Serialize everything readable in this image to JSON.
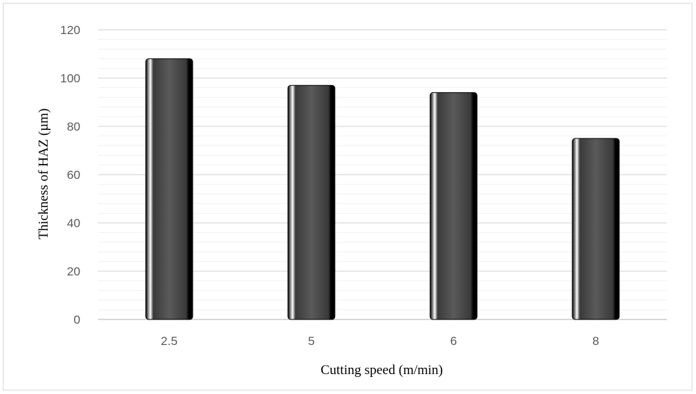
{
  "chart_data": {
    "type": "bar",
    "categories": [
      "2.5",
      "5",
      "6",
      "8"
    ],
    "values": [
      108,
      97,
      94,
      75
    ],
    "title": "",
    "xlabel": "Cutting speed (m/min)",
    "ylabel": "Thickness of HAZ (µm)",
    "ylim": [
      0,
      120
    ],
    "yticks": [
      "0",
      "20",
      "40",
      "60",
      "80",
      "100",
      "120"
    ],
    "grid": true,
    "legend": "none",
    "colors": {
      "bar_fill": "#555555",
      "bar_edge": "#000000",
      "bar_highlight": "#ffffff",
      "major_grid": "#d9d9d9",
      "minor_grid": "#ededed",
      "axis_line": "#bfbfbf"
    }
  }
}
